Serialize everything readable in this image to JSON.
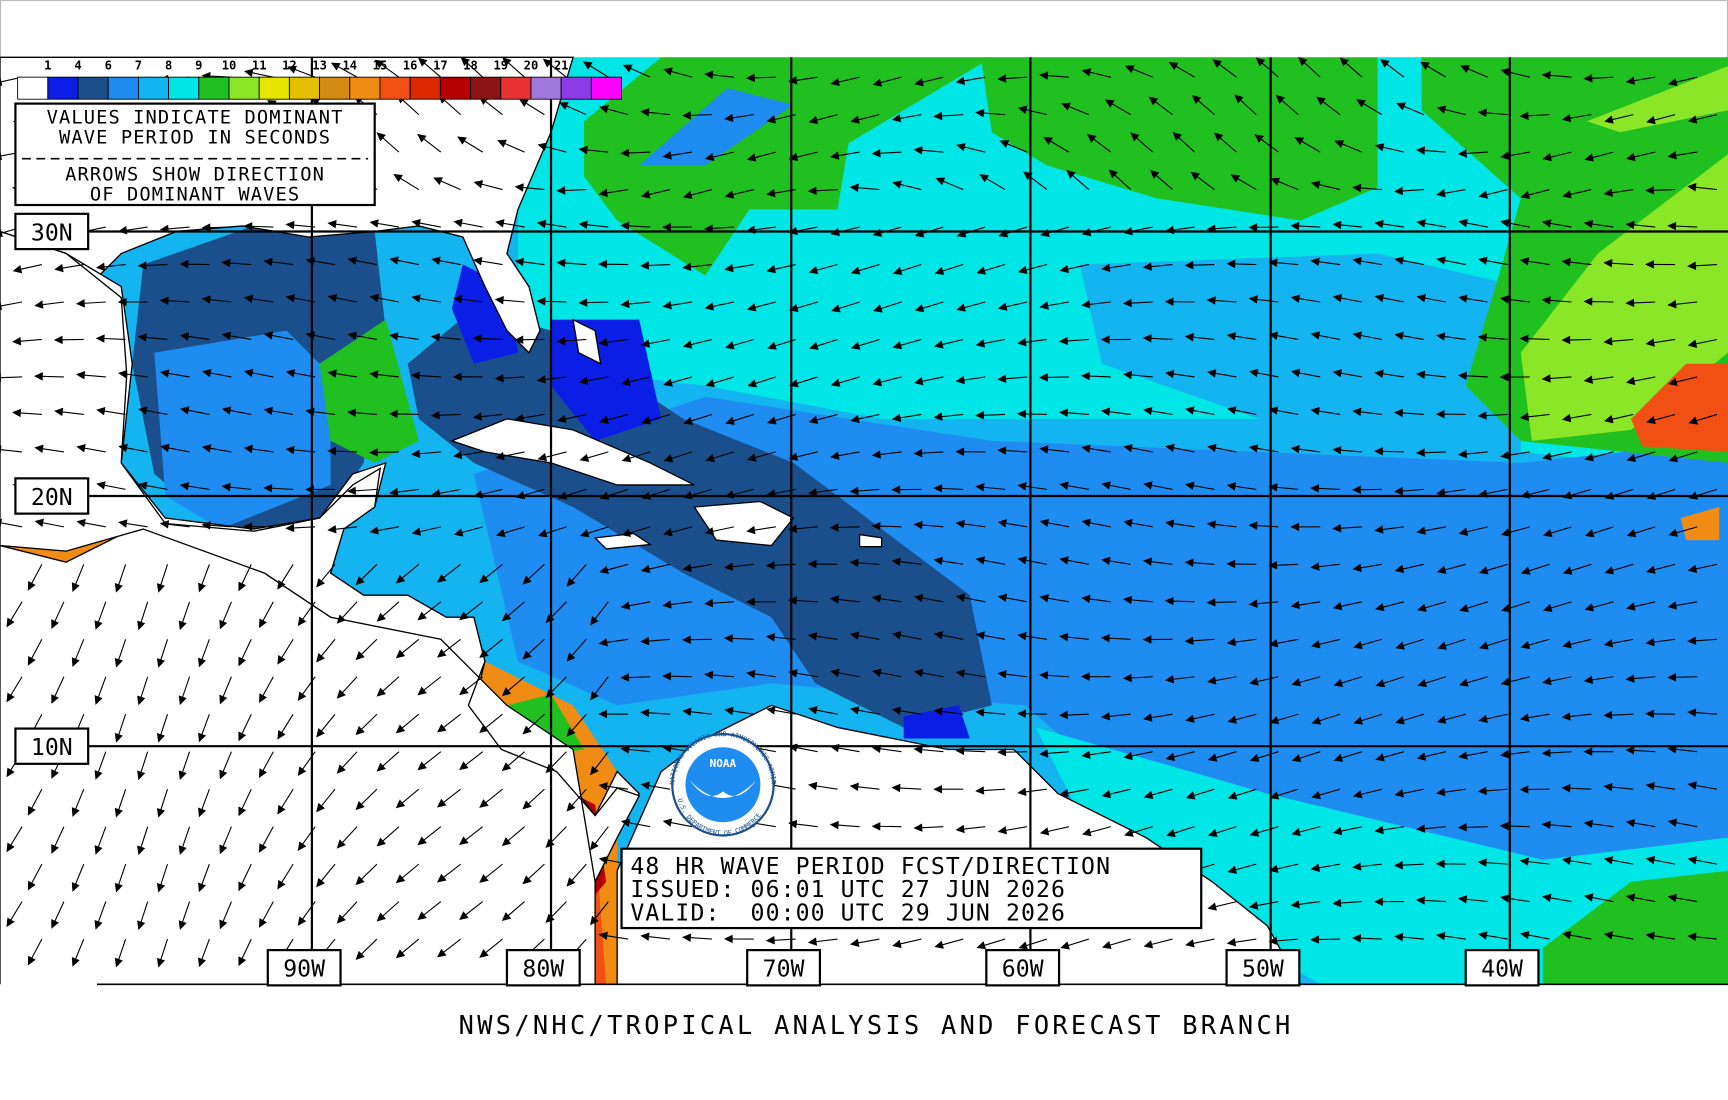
{
  "legend": {
    "labels": [
      "1",
      "4",
      "6",
      "7",
      "8",
      "9",
      "10",
      "11",
      "12",
      "13",
      "14",
      "15",
      "16",
      "17",
      "18",
      "19",
      "20",
      "21"
    ],
    "colors": [
      "#ffffff",
      "#0a1ee6",
      "#1a4f8c",
      "#1e8cf0",
      "#14b4f0",
      "#00e6e6",
      "#20c020",
      "#8ce628",
      "#e6e600",
      "#e6be00",
      "#d28c14",
      "#f08c14",
      "#f05014",
      "#dc2800",
      "#b40000",
      "#8c1414",
      "#e63232",
      "#a078dc",
      "#8c3ce6",
      "#ff00ff"
    ],
    "lines": [
      "VALUES INDICATE DOMINANT",
      "WAVE PERIOD IN SECONDS",
      "ARROWS SHOW DIRECTION",
      "OF DOMINANT WAVES"
    ]
  },
  "latitudes": [
    "30N",
    "20N",
    "10N"
  ],
  "longitudes": [
    "90W",
    "80W",
    "70W",
    "60W",
    "50W",
    "40W"
  ],
  "title_box": [
    "48 HR WAVE PERIOD FCST/DIRECTION",
    "ISSUED: 06:01 UTC 27 JUN 2026",
    "VALID:  00:00 UTC 29 JUN 2026"
  ],
  "logo": {
    "text": "NOAA",
    "ring_top": "NATIONAL OCEANIC AND ATMOSPHERIC ADMINISTRATION",
    "ring_bottom": "U.S. DEPARTMENT OF COMMERCE"
  },
  "footer": "NWS/NHC/TROPICAL ANALYSIS AND FORECAST BRANCH"
}
